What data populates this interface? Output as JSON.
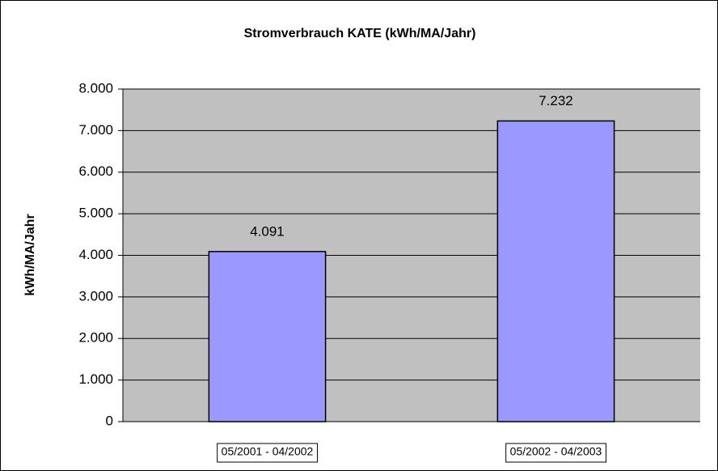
{
  "chart_data": {
    "type": "bar",
    "title": "Stromverbrauch KATE (kWh/MA/Jahr)",
    "y_label": "kWh/MA/Jahr",
    "categories": [
      "05/2001 - 04/2002",
      "05/2002 - 04/2003"
    ],
    "values": [
      4091,
      7232
    ],
    "value_labels": [
      "4.091",
      "7.232"
    ],
    "color": "#9999ff",
    "plot_background": "#c0c0c0",
    "ylim": [
      0,
      8000
    ],
    "yticks": [
      0,
      {
        "value": 1000,
        "label": "1.000"
      },
      {
        "value": 2000,
        "label": "2.000"
      },
      {
        "value": 3000,
        "label": "3.000"
      },
      {
        "value": 4000,
        "label": "4.000"
      },
      {
        "value": 5000,
        "label": "5.000"
      },
      {
        "value": 6000,
        "label": "6.000"
      },
      {
        "value": 7000,
        "label": "7.000"
      },
      {
        "value": 8000,
        "label": "8.000"
      }
    ],
    "grid": true
  }
}
